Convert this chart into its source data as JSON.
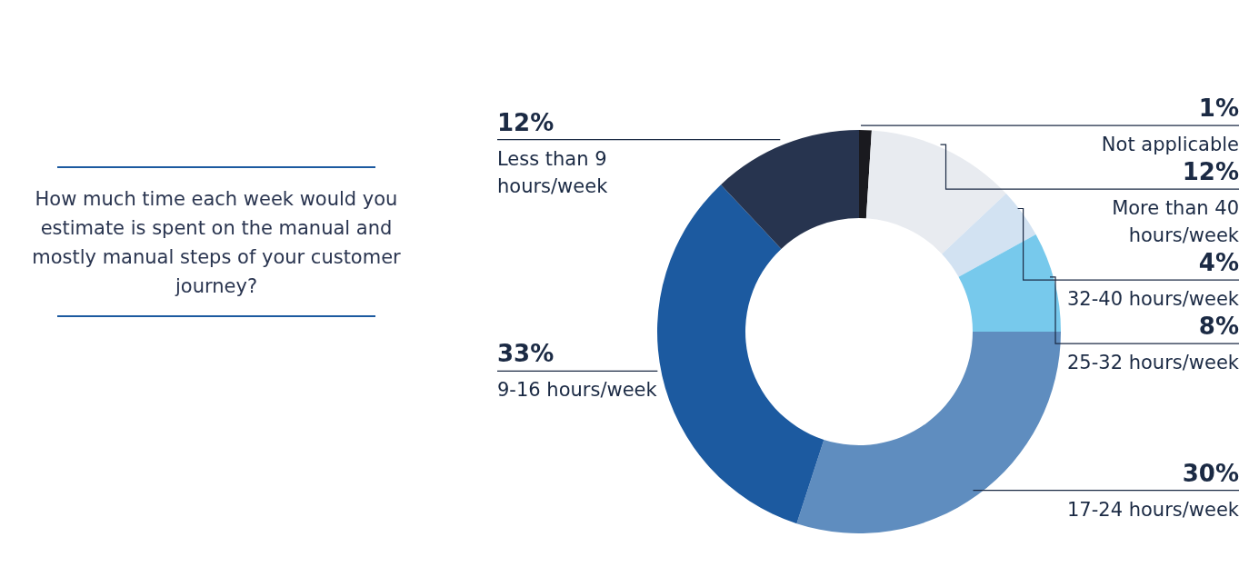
{
  "chart_data": {
    "type": "donut",
    "title": "How much time each week would you estimate is spent on the manual and mostly manual steps of your customer journey?",
    "categories": [
      "Not applicable",
      "More than 40 hours/week",
      "32-40 hours/week",
      "25-32 hours/week",
      "17-24 hours/week",
      "9-16 hours/week",
      "Less than 9 hours/week"
    ],
    "values": [
      1,
      12,
      4,
      8,
      30,
      33,
      12
    ],
    "colors": [
      "#1a1a1f",
      "#e8ebf0",
      "#d2e2f2",
      "#77c9ec",
      "#5f8dbf",
      "#1c5aa0",
      "#27344f"
    ],
    "value_labels": [
      "1%",
      "12%",
      "4%",
      "8%",
      "30%",
      "33%",
      "12%"
    ]
  }
}
